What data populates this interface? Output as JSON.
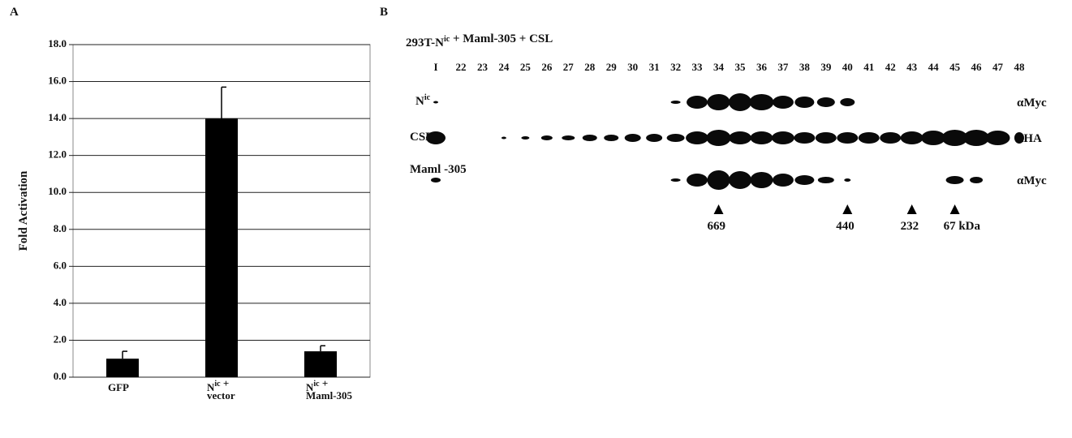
{
  "chart_data": {
    "type": "bar",
    "panel_label": "A",
    "ylabel": "Fold Activation",
    "categories": [
      "GFP",
      "Nic + vector",
      "Nic + Maml-305"
    ],
    "values": [
      1.0,
      14.0,
      1.4
    ],
    "errors": [
      0.4,
      1.7,
      0.3
    ],
    "color": "#000000",
    "ylim": [
      0,
      18
    ],
    "yticks": [
      {
        "value": 0,
        "label": "0.0"
      },
      {
        "value": 2,
        "label": "2.0"
      },
      {
        "value": 4,
        "label": "4.0"
      },
      {
        "value": 6,
        "label": "6.0"
      },
      {
        "value": 8,
        "label": "8.0"
      },
      {
        "value": 10,
        "label": "10.0"
      },
      {
        "value": 12,
        "label": "12.0"
      },
      {
        "value": 14,
        "label": "14.0"
      },
      {
        "value": 16,
        "label": "16.0"
      },
      {
        "value": 18,
        "label": "18.0"
      }
    ],
    "grid": true
  },
  "blot": {
    "panel_label": "B",
    "title": "293T-Nic + Maml-305 + CSL",
    "lanes": [
      "I",
      "22",
      "23",
      "24",
      "25",
      "26",
      "27",
      "28",
      "29",
      "30",
      "31",
      "32",
      "33",
      "34",
      "35",
      "36",
      "37",
      "38",
      "39",
      "40",
      "41",
      "42",
      "43",
      "44",
      "45",
      "46",
      "47",
      "48"
    ],
    "rows": [
      {
        "label": "Nic",
        "antibody": "αMyc"
      },
      {
        "label": "CSL",
        "antibody": "αHA"
      },
      {
        "label": "Maml -305",
        "antibody": "αMyc"
      }
    ],
    "markers": [
      "669",
      "440",
      "232",
      "67 kDa"
    ]
  }
}
